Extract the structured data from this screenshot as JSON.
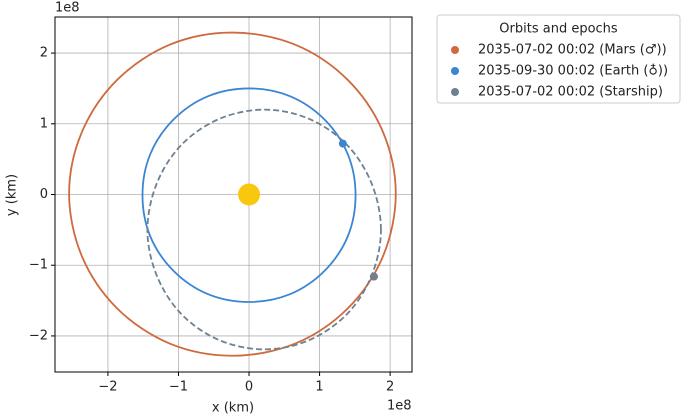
{
  "chart_data": {
    "type": "orbit",
    "xlabel": "x (km)",
    "ylabel": "y (km)",
    "x_offset_text": "1e8",
    "y_offset_text": "1e8",
    "xlim": [
      -2.75,
      2.31
    ],
    "ylim": [
      -2.51,
      2.51
    ],
    "xticks": [
      {
        "value": -2,
        "label": "−2"
      },
      {
        "value": -1,
        "label": "−1"
      },
      0,
      1,
      2
    ],
    "yticks": [
      {
        "value": -2,
        "label": "−2"
      },
      {
        "value": -1,
        "label": "−1"
      },
      0,
      1,
      2
    ],
    "grid": true,
    "legend": "outside right",
    "legend_title": "Orbits and epochs",
    "sun": {
      "x": 0,
      "y": 0,
      "color": "#f9c80e"
    },
    "series": [
      {
        "name": "2035-07-02 00:02 (Mars (♂))",
        "color": "#cf6a3f",
        "dashed": false,
        "x": [
          2.08,
          1.9,
          1.4,
          0.65,
          -0.24,
          -1.12,
          -1.87,
          -2.37,
          -2.55,
          -2.37,
          -1.87,
          -1.12,
          -0.24,
          0.65,
          1.4,
          1.9,
          2.08
        ],
        "y": [
          0.01,
          0.88,
          1.62,
          2.12,
          2.29,
          2.12,
          1.62,
          0.88,
          0.01,
          -0.87,
          -1.61,
          -2.11,
          -2.28,
          -2.11,
          -1.61,
          -0.87,
          0.01
        ],
        "marker": {
          "x": 1.77,
          "y": -1.16
        }
      },
      {
        "name": "2035-09-30 00:02 (Earth (♁))",
        "color": "#3a86d4",
        "dashed": false,
        "x": [
          1.51,
          1.4,
          1.07,
          0.58,
          0,
          -0.58,
          -1.07,
          -1.4,
          -1.51,
          -1.4,
          -1.07,
          -0.58,
          0,
          0.58,
          1.07,
          1.4,
          1.51
        ],
        "y": [
          -0.01,
          0.57,
          1.06,
          1.39,
          1.5,
          1.39,
          1.06,
          0.57,
          -0.01,
          -0.59,
          -1.08,
          -1.41,
          -1.52,
          -1.41,
          -1.08,
          -0.59,
          -0.01
        ],
        "marker": {
          "x": 1.33,
          "y": 0.72
        }
      },
      {
        "name": "2035-07-02 00:02 (Starship)",
        "color": "#6f8190",
        "dashed": true,
        "x": [
          1.87,
          1.74,
          1.39,
          0.85,
          0.22,
          -0.42,
          -0.96,
          -1.31,
          -1.44,
          -1.31,
          -0.96,
          -0.42,
          0.22,
          0.85,
          1.39,
          1.74,
          1.87
        ],
        "y": [
          -0.5,
          0.15,
          0.7,
          1.07,
          1.2,
          1.07,
          0.7,
          0.15,
          -0.5,
          -1.14,
          -1.69,
          -2.06,
          -2.19,
          -2.06,
          -1.69,
          -1.14,
          -0.5
        ],
        "marker": {
          "x": 1.77,
          "y": -1.16
        }
      }
    ]
  }
}
